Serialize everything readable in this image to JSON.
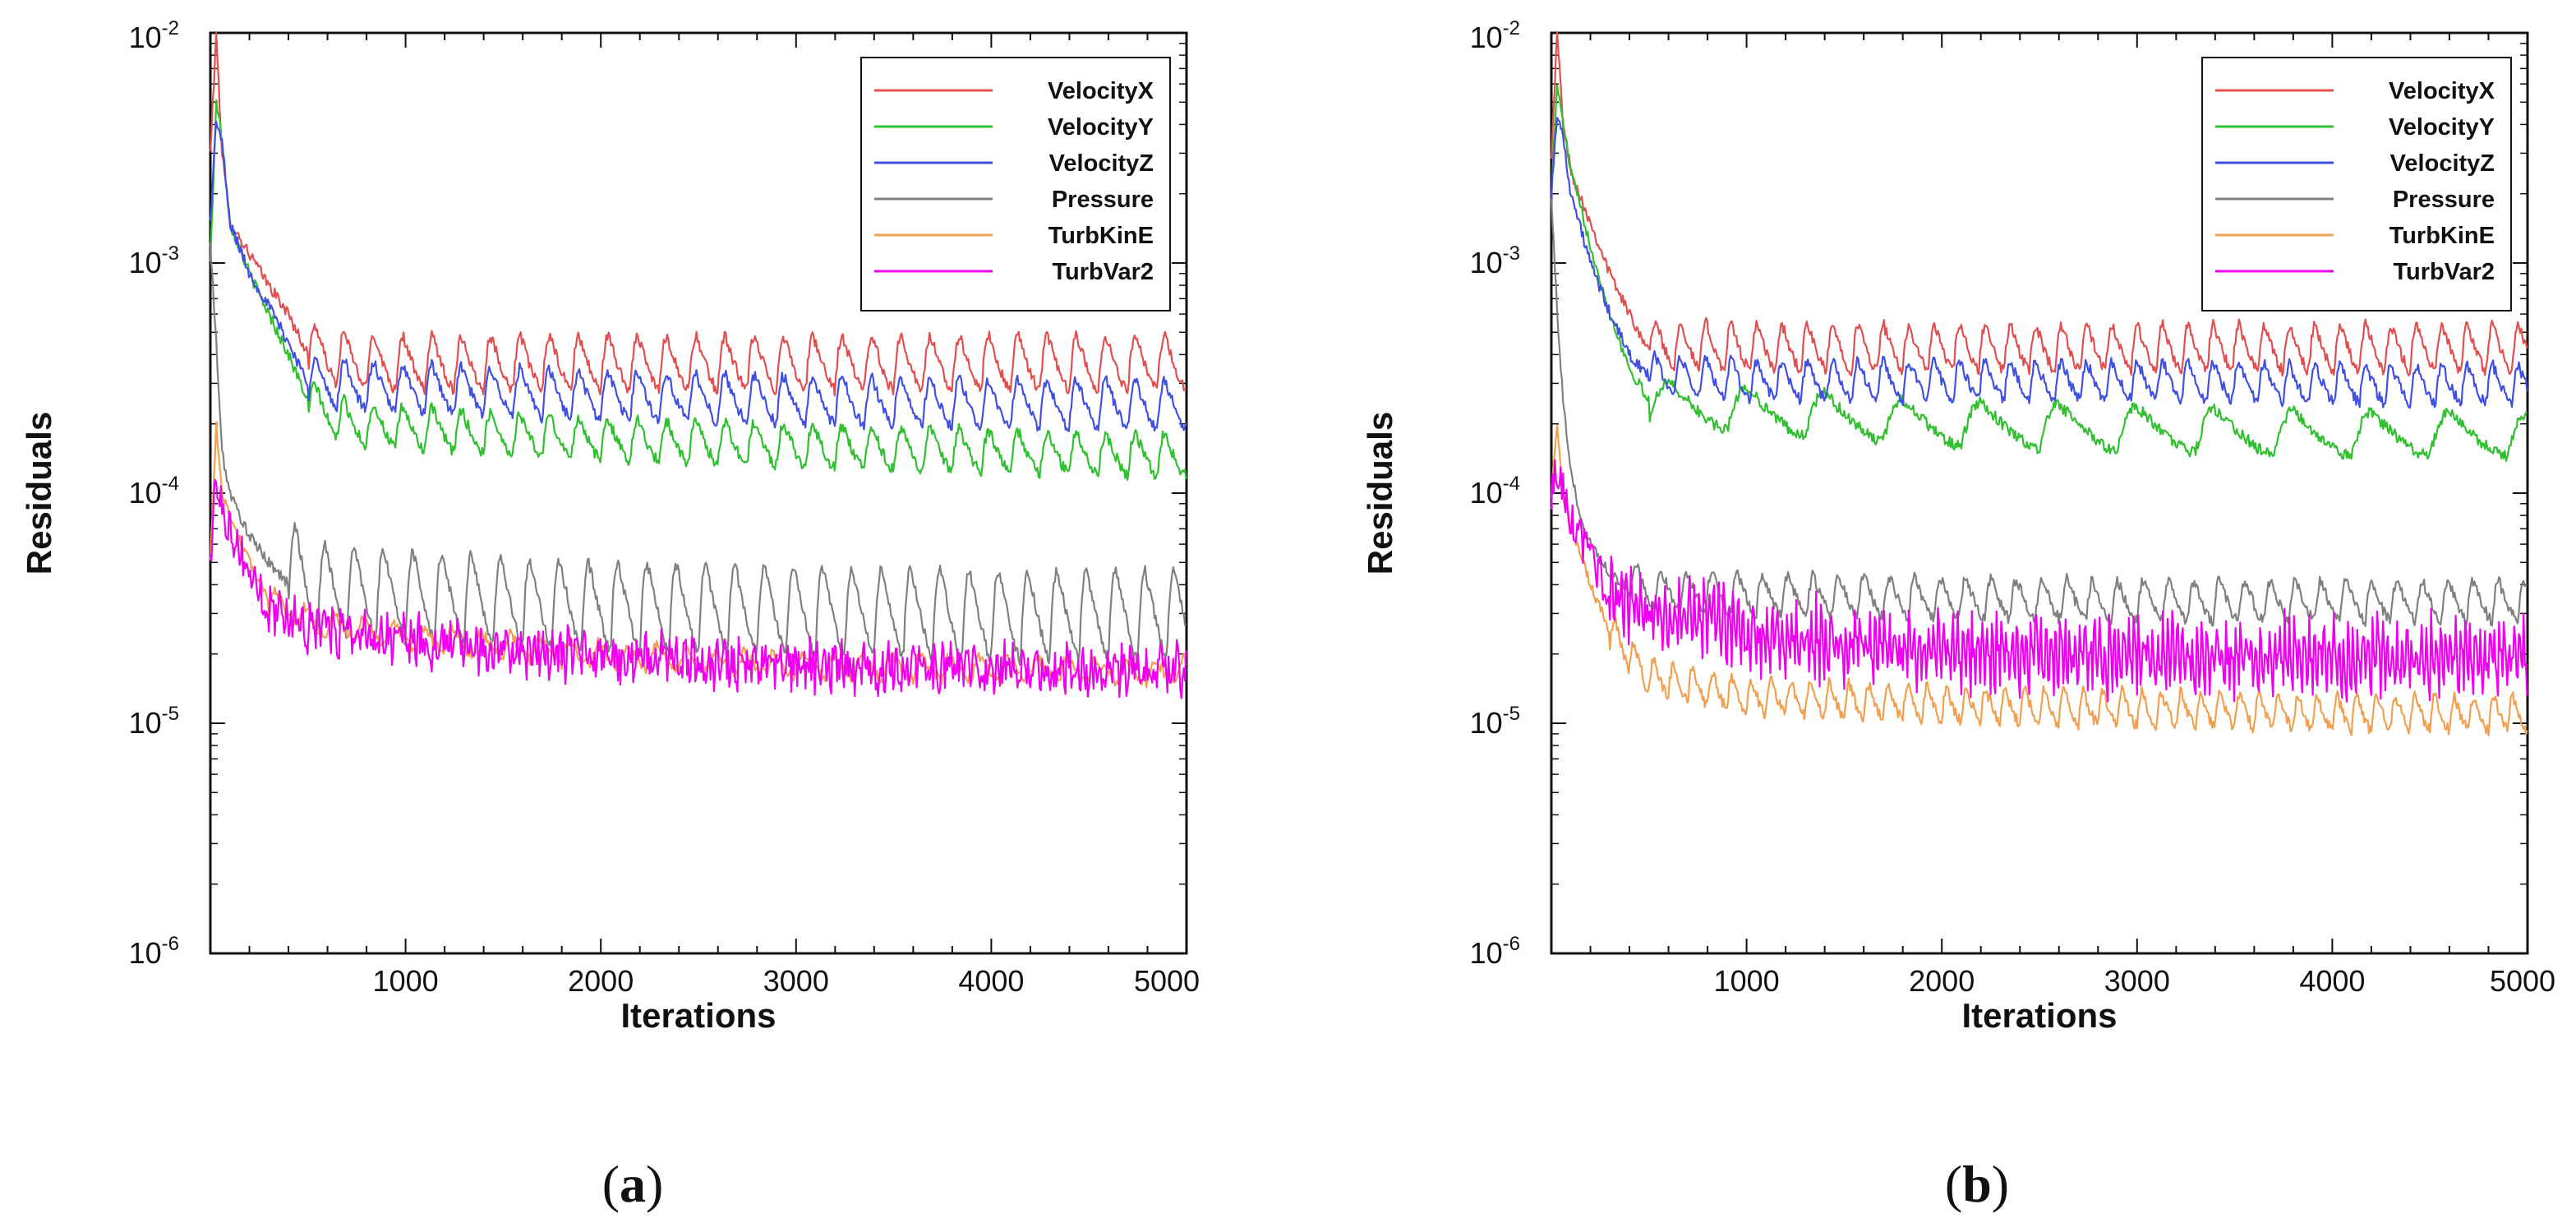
{
  "chart_data": [
    {
      "type": "line",
      "panel": "a",
      "caption": "(a)",
      "caption_prefix": "(",
      "caption_letter": "a",
      "caption_suffix": ")",
      "xlabel": "Iterations",
      "ylabel": "Residuals",
      "y_scale": "log",
      "xlim": [
        0,
        5000
      ],
      "ylim": [
        1e-06,
        0.01
      ],
      "x_ticks": [
        1000,
        2000,
        3000,
        4000,
        5000
      ],
      "x_tick_labels": [
        "1000",
        "2000",
        "3000",
        "4000",
        "5000"
      ],
      "y_tick_labels": [
        {
          "base": "10",
          "exp": "-6"
        },
        {
          "base": "10",
          "exp": "-5"
        },
        {
          "base": "10",
          "exp": "-4"
        },
        {
          "base": "10",
          "exp": "-3"
        },
        {
          "base": "10",
          "exp": "-2"
        }
      ],
      "legend_position": "top-right",
      "series": [
        {
          "name": "VelocityX",
          "color": "#e05050",
          "x": [
            0,
            30,
            60,
            100,
            200,
            300,
            400,
            500,
            700,
            1000,
            2000,
            3000,
            4000,
            5000
          ],
          "values": [
            0.003,
            0.01,
            0.003,
            0.0015,
            0.0011,
            0.0008,
            0.0006,
            0.0004,
            0.00036,
            0.00035,
            0.00035,
            0.00035,
            0.00035,
            0.00035
          ],
          "oscillation": {
            "period": 150,
            "lo_factor": 0.8,
            "hi_factor": 1.38,
            "start": 500
          }
        },
        {
          "name": "VelocityY",
          "color": "#30c030",
          "x": [
            0,
            30,
            60,
            100,
            200,
            300,
            400,
            500,
            700,
            1000,
            2000,
            3000,
            4000,
            5000
          ],
          "values": [
            0.001,
            0.005,
            0.0035,
            0.0015,
            0.0009,
            0.0006,
            0.0004,
            0.00025,
            0.0002,
            0.00019,
            0.00017,
            0.00016,
            0.00015,
            0.000145
          ],
          "oscillation": {
            "period": 150,
            "lo_factor": 0.82,
            "hi_factor": 1.25,
            "start": 500
          }
        },
        {
          "name": "VelocityZ",
          "color": "#4050e0",
          "x": [
            0,
            30,
            60,
            100,
            200,
            300,
            400,
            500,
            700,
            1000,
            2000,
            3000,
            4000,
            5000
          ],
          "values": [
            0.0015,
            0.0042,
            0.0033,
            0.0015,
            0.0009,
            0.00065,
            0.00045,
            0.0003,
            0.00029,
            0.00028,
            0.00026,
            0.00025,
            0.00024,
            0.00024
          ],
          "oscillation": {
            "period": 150,
            "lo_factor": 0.8,
            "hi_factor": 1.3,
            "start": 500
          }
        },
        {
          "name": "Pressure",
          "color": "#808080",
          "x": [
            0,
            30,
            60,
            100,
            150,
            200,
            300,
            400,
            500,
            1000,
            2000,
            3000,
            4000,
            5000
          ],
          "values": [
            0.0012,
            0.00045,
            0.00015,
            0.0001,
            8e-05,
            6.5e-05,
            5e-05,
            4e-05,
            3e-05,
            2.8e-05,
            2.5e-05,
            2.4e-05,
            2.3e-05,
            2.3e-05
          ],
          "oscillation": {
            "period": 150,
            "lo_factor": 0.82,
            "hi_factor": 2.0,
            "start": 400
          }
        },
        {
          "name": "TurbKinE",
          "color": "#f0a050",
          "x": [
            0,
            30,
            60,
            100,
            200,
            300,
            500,
            1000,
            2000,
            3000,
            4000,
            5000
          ],
          "values": [
            5e-05,
            0.0002,
            0.0001,
            8e-05,
            5e-05,
            3.5e-05,
            2.8e-05,
            2.4e-05,
            2e-05,
            1.8e-05,
            1.75e-05,
            1.7e-05
          ],
          "oscillation": {
            "period": 150,
            "lo_factor": 0.88,
            "hi_factor": 1.12,
            "start": 300
          }
        },
        {
          "name": "TurbVar2",
          "color": "#f000f0",
          "x": [
            0,
            30,
            60,
            100,
            200,
            300,
            500,
            1000,
            2000,
            3000,
            4000,
            5000
          ],
          "values": [
            5e-05,
            0.00012,
            9e-05,
            7e-05,
            4.5e-05,
            3.2e-05,
            2.7e-05,
            2.3e-05,
            1.95e-05,
            1.8e-05,
            1.75e-05,
            1.7e-05
          ],
          "oscillation": {
            "period": 40,
            "lo_factor": 0.9,
            "hi_factor": 1.1,
            "start": 300
          }
        }
      ]
    },
    {
      "type": "line",
      "panel": "b",
      "caption": "(b)",
      "caption_prefix": "(",
      "caption_letter": "b",
      "caption_suffix": ")",
      "xlabel": "Iterations",
      "ylabel": "Residuals",
      "y_scale": "log",
      "xlim": [
        0,
        5000
      ],
      "ylim": [
        1e-06,
        0.01
      ],
      "x_ticks": [
        1000,
        2000,
        3000,
        4000,
        5000
      ],
      "x_tick_labels": [
        "1000",
        "2000",
        "3000",
        "4000",
        "5000"
      ],
      "y_tick_labels": [
        {
          "base": "10",
          "exp": "-6"
        },
        {
          "base": "10",
          "exp": "-5"
        },
        {
          "base": "10",
          "exp": "-4"
        },
        {
          "base": "10",
          "exp": "-3"
        },
        {
          "base": "10",
          "exp": "-2"
        }
      ],
      "legend_position": "top-right",
      "series": [
        {
          "name": "VelocityX",
          "color": "#e05050",
          "x": [
            0,
            30,
            60,
            100,
            200,
            300,
            400,
            500,
            1000,
            2000,
            3000,
            4000,
            5000
          ],
          "values": [
            0.003,
            0.01,
            0.004,
            0.0025,
            0.0015,
            0.0009,
            0.0006,
            0.00042,
            0.0004,
            0.0004,
            0.0004,
            0.0004,
            0.0004
          ],
          "oscillation": {
            "period": 130,
            "lo_factor": 0.85,
            "hi_factor": 1.35,
            "start": 500
          }
        },
        {
          "name": "VelocityY",
          "color": "#30c030",
          "x": [
            0,
            30,
            60,
            100,
            200,
            300,
            400,
            500,
            1000,
            2000,
            3000,
            4000,
            5000
          ],
          "values": [
            0.002,
            0.006,
            0.004,
            0.0025,
            0.0012,
            0.0006,
            0.00035,
            0.00025,
            0.00023,
            0.0002,
            0.00019,
            0.00018,
            0.00018
          ],
          "oscillation": {
            "period": 400,
            "lo_factor": 0.8,
            "hi_factor": 1.25,
            "start": 500
          }
        },
        {
          "name": "VelocityZ",
          "color": "#4050e0",
          "x": [
            0,
            30,
            60,
            100,
            200,
            300,
            400,
            500,
            1000,
            2000,
            3000,
            4000,
            5000
          ],
          "values": [
            0.002,
            0.0045,
            0.0035,
            0.002,
            0.001,
            0.0006,
            0.0004,
            0.00032,
            0.0003,
            0.0003,
            0.0003,
            0.00029,
            0.00029
          ],
          "oscillation": {
            "period": 130,
            "lo_factor": 0.85,
            "hi_factor": 1.25,
            "start": 500
          }
        },
        {
          "name": "Pressure",
          "color": "#808080",
          "x": [
            0,
            30,
            60,
            100,
            150,
            200,
            300,
            400,
            500,
            1000,
            2000,
            3000,
            4000,
            5000
          ],
          "values": [
            0.002,
            0.0006,
            0.00025,
            0.00012,
            8e-05,
            6e-05,
            4.5e-05,
            3.8e-05,
            3.5e-05,
            3.3e-05,
            3.2e-05,
            3.1e-05,
            3.1e-05,
            3.1e-05
          ],
          "oscillation": {
            "period": 130,
            "lo_factor": 0.9,
            "hi_factor": 1.35,
            "start": 400
          }
        },
        {
          "name": "TurbKinE",
          "color": "#f0a050",
          "x": [
            0,
            30,
            60,
            100,
            200,
            300,
            500,
            1000,
            2000,
            3000,
            4000,
            5000
          ],
          "values": [
            0.0001,
            0.0002,
            0.0001,
            7e-05,
            4e-05,
            2.5e-05,
            1.6e-05,
            1.3e-05,
            1.2e-05,
            1.15e-05,
            1.1e-05,
            1.1e-05
          ],
          "oscillation": {
            "period": 100,
            "lo_factor": 0.85,
            "hi_factor": 1.2,
            "start": 300
          }
        },
        {
          "name": "TurbVar2",
          "color": "#f000f0",
          "x": [
            0,
            30,
            60,
            100,
            200,
            300,
            500,
            800,
            1000,
            2000,
            3000,
            4000,
            5000
          ],
          "values": [
            0.0001,
            0.00013,
            0.0001,
            8e-05,
            5e-05,
            3.8e-05,
            3e-05,
            3e-05,
            2.5e-05,
            2.1e-05,
            2e-05,
            2e-05,
            2e-05
          ],
          "oscillation": {
            "period": 25,
            "lo_factor": 0.75,
            "hi_factor": 1.3,
            "start": 300
          }
        }
      ]
    }
  ]
}
